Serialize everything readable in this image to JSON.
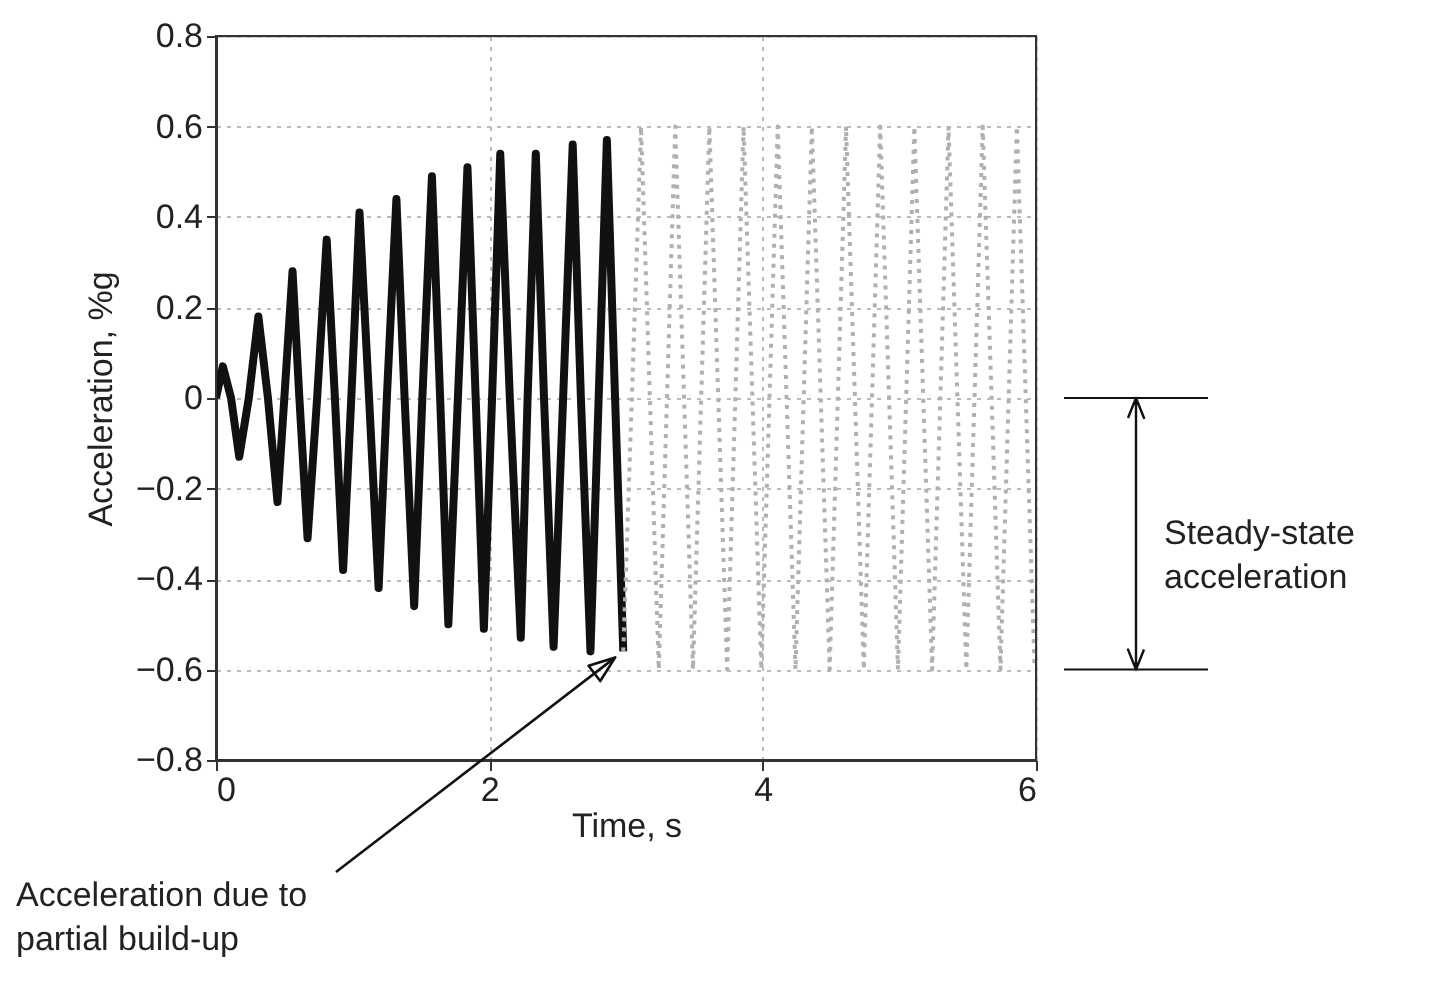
{
  "chart_data": {
    "type": "line",
    "xlabel": "Time, s",
    "ylabel": "Acceleration, %g",
    "xlim": [
      0,
      6
    ],
    "xticks": [
      0,
      2,
      4,
      6
    ],
    "ylim": [
      -0.8,
      0.8
    ],
    "yticks": [
      0.8,
      0.6,
      0.4,
      0.2,
      0,
      -0.2,
      -0.4,
      -0.6,
      -0.8
    ],
    "grid": true,
    "marker": "none",
    "series": [
      {
        "color": "#111111",
        "line_style": "solid",
        "x": [
          0,
          0.05,
          0.11,
          0.17,
          0.24,
          0.31,
          0.38,
          0.45,
          0.5,
          0.56,
          0.61,
          0.67,
          0.74,
          0.81,
          0.87,
          0.93,
          0.99,
          1.05,
          1.12,
          1.19,
          1.25,
          1.32,
          1.38,
          1.45,
          1.51,
          1.58,
          1.64,
          1.7,
          1.77,
          1.84,
          1.9,
          1.96,
          2.02,
          2.08,
          2.15,
          2.23,
          2.28,
          2.34,
          2.4,
          2.47,
          2.54,
          2.61,
          2.67,
          2.74,
          2.8,
          2.86,
          2.92,
          2.98
        ],
        "values": [
          0,
          0.07,
          0,
          -0.13,
          0,
          0.18,
          0,
          -0.23,
          0,
          0.28,
          0,
          -0.31,
          0,
          0.35,
          0,
          -0.38,
          0,
          0.41,
          0,
          -0.42,
          0,
          0.44,
          0,
          -0.46,
          0,
          0.49,
          0,
          -0.5,
          0,
          0.51,
          0,
          -0.51,
          0,
          0.54,
          0,
          -0.53,
          0,
          0.54,
          0,
          -0.55,
          0,
          0.56,
          0,
          -0.56,
          0,
          0.57,
          0,
          -0.56
        ]
      },
      {
        "color": "#b0b0b0",
        "line_style": "dotted",
        "x": [
          2.98,
          3.11,
          3.24,
          3.36,
          3.49,
          3.61,
          3.74,
          3.86,
          3.99,
          4.11,
          4.24,
          4.36,
          4.49,
          4.61,
          4.74,
          4.86,
          4.99,
          5.11,
          5.24,
          5.36,
          5.49,
          5.61,
          5.74,
          5.86,
          5.99
        ],
        "values": [
          -0.56,
          0.6,
          -0.6,
          0.6,
          -0.6,
          0.6,
          -0.6,
          0.6,
          -0.6,
          0.6,
          -0.6,
          0.6,
          -0.6,
          0.6,
          -0.6,
          0.6,
          -0.6,
          0.6,
          -0.6,
          0.6,
          -0.6,
          0.6,
          -0.6,
          0.6,
          -0.6
        ]
      }
    ],
    "annotations": [
      {
        "text": "Acceleration due to\npartial build-up",
        "x": 2.98,
        "y": -0.56
      },
      "Steady-state\nacceleration"
    ]
  }
}
